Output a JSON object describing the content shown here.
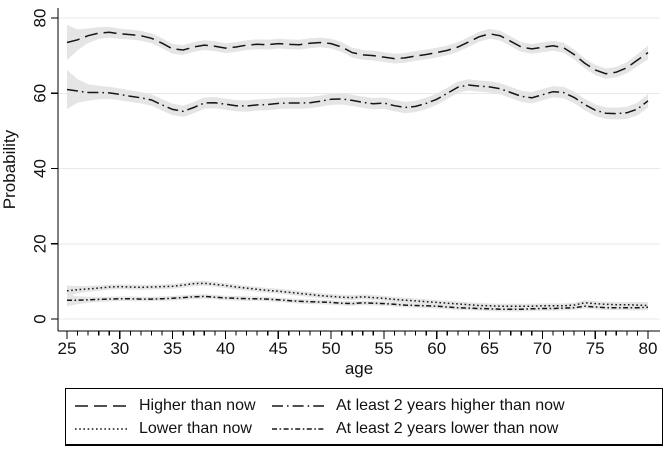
{
  "colors": {
    "line": "#161616",
    "ci_band": "#e5e5e5",
    "gridline": "#e9e9e9",
    "axis": "#000000",
    "text": "#111111",
    "background": "#ffffff"
  },
  "chart_data": {
    "type": "line",
    "title": "",
    "xlabel": "age",
    "ylabel": "Probability",
    "xlim": [
      25,
      80
    ],
    "ylim": [
      0,
      80
    ],
    "grid": "horizontal",
    "legend_position": "bottom",
    "x_major_ticks": [
      25,
      30,
      35,
      40,
      45,
      50,
      55,
      60,
      65,
      70,
      75,
      80
    ],
    "x_minor_tick_step": 1,
    "y_ticks": [
      0,
      20,
      40,
      60,
      80
    ],
    "x_start": 25,
    "x_step": 1,
    "series": [
      {
        "name": "Higher than now",
        "dash": "longdash",
        "values": [
          73.5,
          74.2,
          75.3,
          76.0,
          76.2,
          75.8,
          75.6,
          75.3,
          74.6,
          73.3,
          71.8,
          71.5,
          72.3,
          72.8,
          72.5,
          72.0,
          72.3,
          72.8,
          73.0,
          72.9,
          73.2,
          73.0,
          72.9,
          73.3,
          73.5,
          73.2,
          72.3,
          70.8,
          70.2,
          70.0,
          69.6,
          69.2,
          69.4,
          69.9,
          70.3,
          70.8,
          71.4,
          72.3,
          73.6,
          75.0,
          75.8,
          75.3,
          73.8,
          72.3,
          71.8,
          72.2,
          72.6,
          72.1,
          70.3,
          68.0,
          66.2,
          65.2,
          65.6,
          66.8,
          68.8,
          70.8
        ],
        "ci_halfwidth": {
          "start": 4.7,
          "base": 1.3,
          "end": 1.8
        }
      },
      {
        "name": "At least 2 years higher than now",
        "dash": "dashdot",
        "values": [
          61.0,
          60.6,
          60.2,
          60.2,
          60.1,
          59.7,
          59.2,
          58.8,
          58.2,
          56.9,
          55.7,
          55.2,
          56.2,
          57.4,
          57.5,
          57.1,
          56.7,
          56.6,
          56.9,
          57.0,
          57.3,
          57.4,
          57.4,
          57.5,
          57.9,
          58.4,
          58.5,
          58.1,
          57.6,
          57.2,
          57.4,
          56.7,
          56.2,
          56.5,
          57.3,
          58.4,
          60.0,
          61.6,
          62.2,
          61.9,
          61.7,
          61.2,
          60.2,
          59.2,
          58.8,
          59.6,
          60.4,
          60.2,
          58.9,
          57.0,
          55.5,
          54.7,
          54.6,
          54.8,
          55.8,
          58.0
        ],
        "ci_halfwidth": {
          "start": 5.2,
          "base": 1.5,
          "end": 1.8
        }
      },
      {
        "name": "Lower than now",
        "dash": "dot",
        "values": [
          7.5,
          7.8,
          8.0,
          8.2,
          8.5,
          8.6,
          8.5,
          8.4,
          8.5,
          8.6,
          8.7,
          9.0,
          9.4,
          9.5,
          9.2,
          8.9,
          8.5,
          8.2,
          7.9,
          7.6,
          7.4,
          7.1,
          6.8,
          6.5,
          6.2,
          6.0,
          5.8,
          5.7,
          5.9,
          5.7,
          5.5,
          5.2,
          5.0,
          4.8,
          4.6,
          4.4,
          4.2,
          4.0,
          3.8,
          3.6,
          3.5,
          3.4,
          3.4,
          3.4,
          3.4,
          3.5,
          3.5,
          3.5,
          3.7,
          4.3,
          4.1,
          3.9,
          3.8,
          3.8,
          3.7,
          3.6
        ],
        "ci_halfwidth": {
          "start": 1.4,
          "base": 0.65,
          "end": 0.9
        }
      },
      {
        "name": "At least 2 years lower than now",
        "dash": "shortdashdot",
        "values": [
          5.0,
          5.0,
          5.1,
          5.2,
          5.3,
          5.4,
          5.4,
          5.3,
          5.3,
          5.4,
          5.5,
          5.7,
          5.9,
          6.0,
          5.8,
          5.6,
          5.5,
          5.4,
          5.4,
          5.3,
          5.1,
          4.9,
          4.7,
          4.6,
          4.5,
          4.4,
          4.2,
          4.1,
          4.3,
          4.2,
          4.1,
          3.9,
          3.7,
          3.6,
          3.5,
          3.4,
          3.2,
          3.0,
          2.9,
          2.8,
          2.7,
          2.6,
          2.6,
          2.6,
          2.7,
          2.8,
          2.8,
          2.9,
          3.0,
          3.4,
          3.2,
          3.0,
          3.0,
          3.0,
          3.0,
          3.1
        ],
        "ci_halfwidth": {
          "start": 1.6,
          "base": 0.6,
          "end": 0.8
        }
      }
    ]
  },
  "legend": {
    "items": [
      {
        "label": "Higher than now",
        "dash": "longdash"
      },
      {
        "label": "At least 2 years higher than now",
        "dash": "dashdot"
      },
      {
        "label": "Lower than now",
        "dash": "dot"
      },
      {
        "label": "At least 2 years lower than now",
        "dash": "shortdashdot"
      }
    ]
  }
}
